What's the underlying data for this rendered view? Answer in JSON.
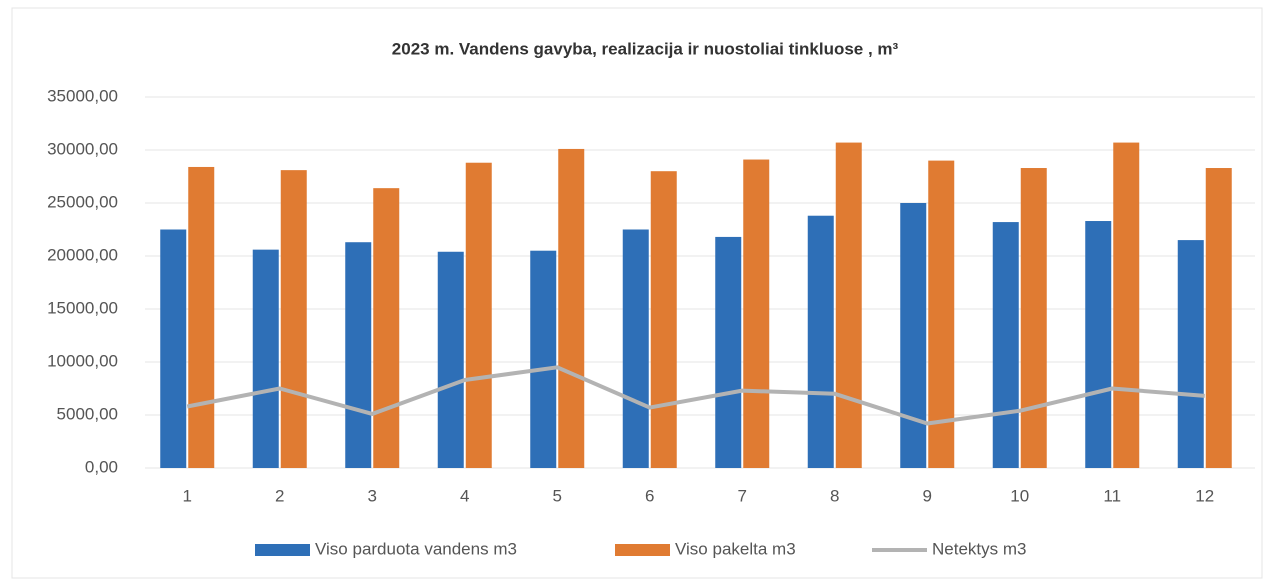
{
  "chart_data": {
    "type": "bar_line",
    "title": "2023 m. Vandens gavyba, realizacija ir nuostoliai tinkluose , m³",
    "categories": [
      "1",
      "2",
      "3",
      "4",
      "5",
      "6",
      "7",
      "8",
      "9",
      "10",
      "11",
      "12"
    ],
    "series": [
      {
        "name": "Viso parduota vandens  m3",
        "type": "bar",
        "color": "#2e6fb7",
        "values": [
          22500,
          20600,
          21300,
          20400,
          20500,
          22500,
          21800,
          23800,
          25000,
          23200,
          23300,
          21500
        ]
      },
      {
        "name": "Viso pakelta m3",
        "type": "bar",
        "color": "#e07b32",
        "values": [
          28400,
          28100,
          26400,
          28800,
          30100,
          28000,
          29100,
          30700,
          29000,
          28300,
          30700,
          28300
        ]
      },
      {
        "name": "Netektys m3",
        "type": "line",
        "color": "#b3b3b3",
        "values": [
          5800,
          7500,
          5100,
          8300,
          9500,
          5700,
          7300,
          7000,
          4200,
          5400,
          7500,
          6800
        ]
      }
    ],
    "ylim": [
      0,
      35000
    ],
    "yticks": [
      {
        "value": 0,
        "label": "0,00"
      },
      {
        "value": 5000,
        "label": "5000,00"
      },
      {
        "value": 10000,
        "label": "10000,00"
      },
      {
        "value": 15000,
        "label": "15000,00"
      },
      {
        "value": 20000,
        "label": "20000,00"
      },
      {
        "value": 25000,
        "label": "25000,00"
      },
      {
        "value": 30000,
        "label": "30000,00"
      },
      {
        "value": 35000,
        "label": "35000,00"
      }
    ],
    "grid": true,
    "legend": "bottom"
  }
}
